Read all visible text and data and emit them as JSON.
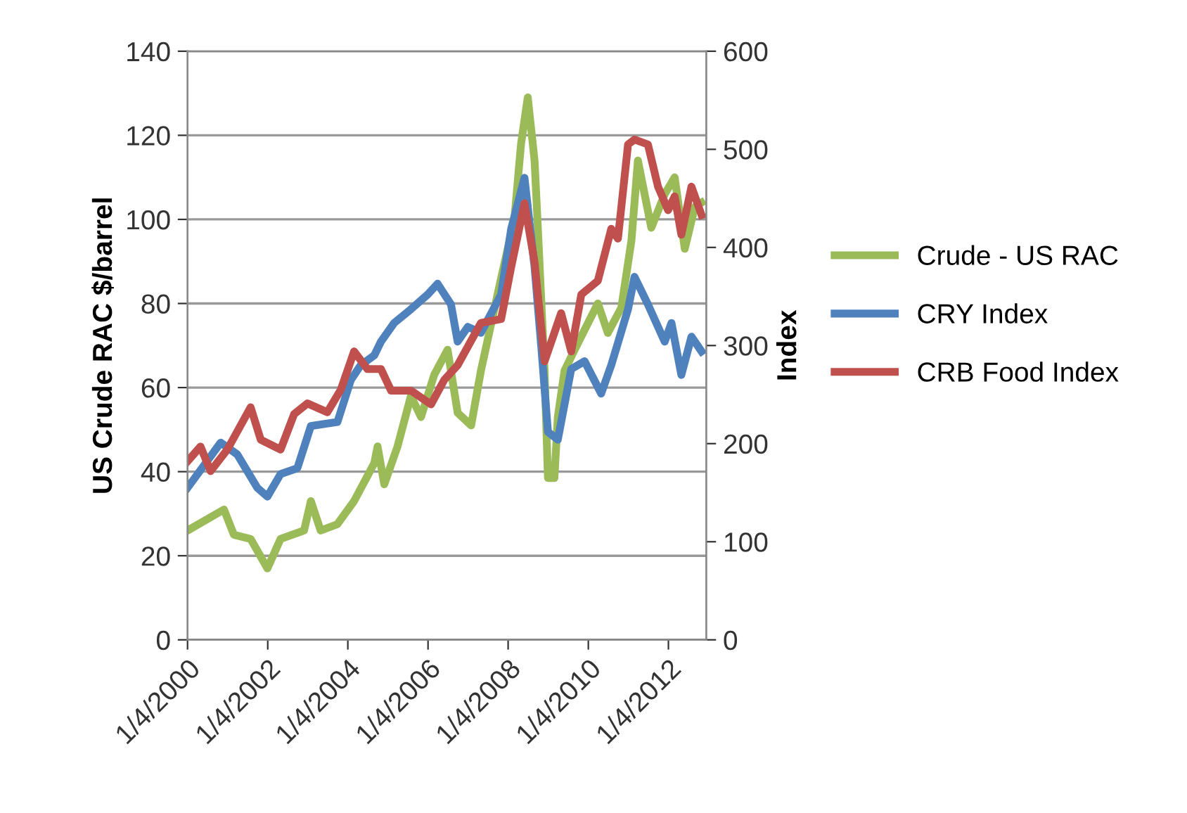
{
  "chart_data": {
    "type": "line",
    "ylabel": "US Crude RAC $/barrel",
    "y2label": "Index",
    "xlim": [
      "2000-01-04",
      "2012-12-14"
    ],
    "xticks": [
      {
        "value": "2000-01-04",
        "label": "1/4/2000"
      },
      {
        "value": "2002-01-04",
        "label": "1/4/2002"
      },
      {
        "value": "2004-01-04",
        "label": "1/4/2004"
      },
      {
        "value": "2006-01-04",
        "label": "1/4/2006"
      },
      {
        "value": "2008-01-04",
        "label": "1/4/2008"
      },
      {
        "value": "2010-01-04",
        "label": "1/4/2010"
      },
      {
        "value": "2012-01-04",
        "label": "1/4/2012"
      }
    ],
    "ylim": [
      0,
      140
    ],
    "yticks": [
      0,
      20,
      40,
      60,
      80,
      100,
      120,
      140
    ],
    "y2lim": [
      0,
      600
    ],
    "y2ticks": [
      0,
      100,
      200,
      300,
      400,
      500,
      600
    ],
    "grid": "y",
    "legend": "right",
    "marker": "none",
    "line_style": "solid",
    "series": [
      {
        "name": "Crude - US RAC",
        "color": "#9bbb59",
        "x": [
          "2000-01-04",
          "2000-12",
          "2001-03",
          "2001-08",
          "2002-01",
          "2002-05",
          "2002-12",
          "2003-02",
          "2003-05",
          "2003-10",
          "2004-03",
          "2004-09",
          "2004-10",
          "2004-12",
          "2005-04",
          "2005-08",
          "2005-11",
          "2006-03",
          "2006-07",
          "2006-10",
          "2007-02",
          "2007-05",
          "2007-11",
          "2008-03",
          "2008-05",
          "2008-07",
          "2008-09",
          "2008-10",
          "2008-12",
          "2009-01",
          "2009-03",
          "2009-04",
          "2009-06",
          "2009-09",
          "2010-04",
          "2010-07",
          "2010-11",
          "2011-02",
          "2011-04",
          "2011-06",
          "2011-08",
          "2011-12",
          "2012-03",
          "2012-06",
          "2012-09",
          "2012-11"
        ],
        "values": [
          26,
          31,
          25,
          24,
          17,
          24,
          26,
          33,
          26,
          27.5,
          33,
          42,
          46,
          37,
          46,
          58,
          53,
          63,
          69,
          54,
          51,
          64,
          86,
          100,
          118,
          129,
          114,
          98,
          64,
          38.5,
          38.5,
          53,
          64,
          69,
          80,
          73,
          79,
          95,
          114,
          106,
          98,
          106,
          110,
          93,
          103,
          104
        ]
      },
      {
        "name": "CRY Index",
        "color": "#4f81bd",
        "axis": "y2",
        "x": [
          "2000-01-04",
          "2000-11",
          "2001-04",
          "2001-10",
          "2002-01",
          "2002-05",
          "2002-10",
          "2003-02",
          "2003-10",
          "2004-02",
          "2004-05",
          "2004-09",
          "2004-11",
          "2005-03",
          "2005-08",
          "2006-01",
          "2006-04",
          "2006-08",
          "2006-10",
          "2007-01",
          "2007-05",
          "2007-11",
          "2008-02",
          "2008-06",
          "2008-09",
          "2008-11",
          "2009-01",
          "2009-04",
          "2009-08",
          "2009-12",
          "2010-05",
          "2010-08",
          "2011-01",
          "2011-03",
          "2011-07",
          "2011-12",
          "2012-02",
          "2012-05",
          "2012-08",
          "2012-11"
        ],
        "values": [
          155,
          201,
          189,
          155,
          146,
          169,
          175,
          218,
          222,
          265,
          280,
          290,
          304,
          323,
          337,
          352,
          363,
          342,
          304,
          319,
          313,
          352,
          419,
          471,
          380,
          299,
          212,
          204,
          276,
          284,
          251,
          280,
          337,
          370,
          342,
          304,
          323,
          270,
          309,
          294
        ]
      },
      {
        "name": "CRB Food Index",
        "color": "#c0504d",
        "axis": "y2",
        "x": [
          "2000-01-04",
          "2000-05",
          "2000-08",
          "2001-01",
          "2001-08",
          "2001-11",
          "2002-05",
          "2002-09",
          "2003-01",
          "2003-07",
          "2003-11",
          "2004-03",
          "2004-07",
          "2004-11",
          "2005-02",
          "2005-08",
          "2006-02",
          "2006-06",
          "2006-10",
          "2007-05",
          "2007-11",
          "2008-02",
          "2008-06",
          "2008-09",
          "2008-12",
          "2009-02",
          "2009-05",
          "2009-08",
          "2009-11",
          "2010-04",
          "2010-08",
          "2010-10",
          "2011-01",
          "2011-03",
          "2011-07",
          "2011-10",
          "2012-01",
          "2012-03",
          "2012-05",
          "2012-08",
          "2012-11"
        ],
        "values": [
          182,
          197,
          172,
          194,
          237,
          204,
          194,
          230,
          241,
          232,
          255,
          294,
          276,
          276,
          254,
          254,
          240,
          265,
          280,
          323,
          327,
          380,
          445,
          385,
          284,
          304,
          333,
          294,
          352,
          366,
          419,
          409,
          505,
          510,
          505,
          462,
          438,
          452,
          413,
          462,
          433
        ]
      }
    ]
  }
}
